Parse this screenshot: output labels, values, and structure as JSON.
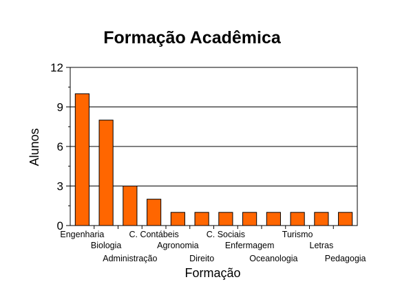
{
  "chart_data": {
    "type": "bar",
    "title": "Formação Acadêmica",
    "xlabel": "Formação",
    "ylabel": "Alunos",
    "categories": [
      "Engenharia",
      "Biologia",
      "Administração",
      "C. Contábeis",
      "Agronomia",
      "Direito",
      "C. Sociais",
      "Enfermagem",
      "Oceanologia",
      "Turismo",
      "Letras",
      "Pedagogia"
    ],
    "values": [
      10,
      8,
      3,
      2,
      1,
      1,
      1,
      1,
      1,
      1,
      1,
      1
    ],
    "ylim": [
      0,
      12
    ],
    "yticks": [
      "0",
      "3",
      "6",
      "9",
      "12"
    ],
    "grid": true,
    "legend": "none",
    "bar_color": "#ff6600",
    "bar_edge_color": "#000000",
    "grid_color": "#000000"
  }
}
